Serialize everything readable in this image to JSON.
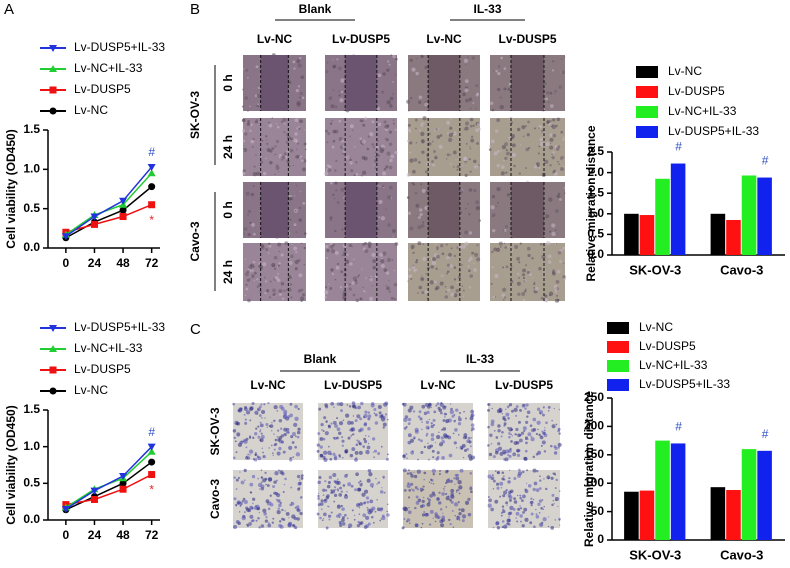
{
  "panel_labels": [
    "A",
    "B",
    "C"
  ],
  "wound_healing": {
    "groups": [
      "Blank",
      "IL-33"
    ],
    "columns": [
      "Lv-NC",
      "Lv-DUSP5",
      "Lv-NC",
      "Lv-DUSP5"
    ],
    "cell_lines": [
      "SK-OV-3",
      "Cavo-3"
    ],
    "times": [
      "0 h",
      "24 h"
    ]
  },
  "transwell": {
    "groups": [
      "Blank",
      "IL-33"
    ],
    "columns": [
      "Lv-NC",
      "Lv-DUSP5",
      "Lv-NC",
      "Lv-DUSP5"
    ],
    "cell_lines": [
      "SK-OV-3",
      "Cavo-3"
    ]
  },
  "chart_data": [
    {
      "type": "line",
      "ylabel": "Cell viability (OD450)",
      "x": [
        0,
        24,
        48,
        72
      ],
      "xlim": [
        -15,
        79
      ],
      "xticks": [
        0,
        24,
        48,
        72
      ],
      "ylim": [
        0,
        1.5
      ],
      "yticks": [
        {
          "value": 0,
          "label": "0.0"
        },
        0.5,
        {
          "value": 1,
          "label": "1.0"
        },
        1.5
      ],
      "series": [
        {
          "name": "Lv-DUSP5+IL-33",
          "color": "#2233dd",
          "values": [
            0.15,
            0.4,
            0.6,
            1.03
          ]
        },
        {
          "name": "Lv-NC+IL-33",
          "color": "#22cc33",
          "values": [
            0.17,
            0.42,
            0.55,
            0.95
          ]
        },
        {
          "name": "Lv-DUSP5",
          "color": "#ee1111",
          "values": [
            0.2,
            0.3,
            0.4,
            0.55
          ]
        },
        {
          "name": "Lv-NC",
          "color": "#000000",
          "values": [
            0.13,
            0.33,
            0.48,
            0.78
          ]
        }
      ],
      "annotations": [
        {
          "text": "#",
          "color": "#3050c8"
        },
        {
          "text": "*",
          "color": "#ee2222"
        }
      ]
    },
    {
      "type": "line",
      "ylabel": "Cell viability (OD450)",
      "x": [
        0,
        24,
        48,
        72
      ],
      "xlim": [
        -15,
        79
      ],
      "xticks": [
        0,
        24,
        48,
        72
      ],
      "ylim": [
        0,
        1.5
      ],
      "yticks": [
        {
          "value": 0,
          "label": "0.0"
        },
        0.5,
        {
          "value": 1,
          "label": "1.0"
        },
        1.5
      ],
      "series": [
        {
          "name": "Lv-DUSP5+IL-33",
          "color": "#2233dd",
          "values": [
            0.15,
            0.4,
            0.6,
            1.0
          ]
        },
        {
          "name": "Lv-NC+IL-33",
          "color": "#22cc33",
          "values": [
            0.17,
            0.42,
            0.57,
            0.93
          ]
        },
        {
          "name": "Lv-DUSP5",
          "color": "#ee1111",
          "values": [
            0.21,
            0.28,
            0.42,
            0.62
          ]
        },
        {
          "name": "Lv-NC",
          "color": "#000000",
          "values": [
            0.14,
            0.32,
            0.5,
            0.79
          ]
        }
      ],
      "annotations": [
        {
          "text": "#",
          "color": "#3050c8"
        },
        {
          "text": "*",
          "color": "#ee2222"
        }
      ]
    },
    {
      "type": "bar",
      "ylabel": "Relative migration distance",
      "categories": [
        "SK-OV-3",
        "Cavo-3"
      ],
      "ylim": [
        0,
        2.5
      ],
      "yticks": [
        {
          "value": 0,
          "label": "0.0"
        },
        0.5,
        {
          "value": 1,
          "label": "1.0"
        },
        1.5,
        {
          "value": 2,
          "label": "2.0"
        },
        2.5
      ],
      "series": [
        {
          "name": "Lv-NC",
          "color": "#000000",
          "values": [
            1.0,
            1.0
          ]
        },
        {
          "name": "Lv-DUSP5",
          "color": "#ff1111",
          "values": [
            0.97,
            0.85
          ]
        },
        {
          "name": "Lv-NC+IL-33",
          "color": "#22ee22",
          "values": [
            1.85,
            1.93
          ]
        },
        {
          "name": "Lv-DUSP5+IL-33",
          "color": "#1122ee",
          "values": [
            2.22,
            1.88
          ]
        }
      ],
      "annotations": [
        {
          "text": "#",
          "color": "#3050c8"
        },
        {
          "text": "#",
          "color": "#3050c8"
        }
      ]
    },
    {
      "type": "bar",
      "ylabel": "Relative migration distance",
      "categories": [
        "SK-OV-3",
        "Cavo-3"
      ],
      "ylim": [
        0,
        250
      ],
      "yticks": [
        0,
        50,
        100,
        150,
        200,
        250
      ],
      "series": [
        {
          "name": "Lv-NC",
          "color": "#000000",
          "values": [
            85,
            93
          ]
        },
        {
          "name": "Lv-DUSP5",
          "color": "#ff1111",
          "values": [
            87,
            88
          ]
        },
        {
          "name": "Lv-NC+IL-33",
          "color": "#22ee22",
          "values": [
            175,
            160
          ]
        },
        {
          "name": "Lv-DUSP5+IL-33",
          "color": "#1122ee",
          "values": [
            170,
            157
          ]
        }
      ],
      "annotations": [
        {
          "text": "#",
          "color": "#3050c8"
        },
        {
          "text": "#",
          "color": "#3050c8"
        }
      ]
    }
  ]
}
